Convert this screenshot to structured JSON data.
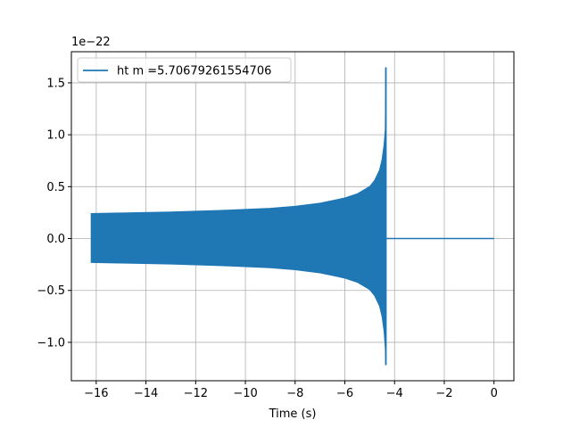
{
  "chart_data": {
    "type": "line",
    "xlabel": "Time (s)",
    "ylabel": "",
    "offset_text": "1e−22",
    "xlim": [
      -17.0,
      0.8
    ],
    "ylim": [
      -1.37,
      1.8
    ],
    "grid": true,
    "legend_position": "top-left",
    "x_ticks": [
      -16,
      -14,
      -12,
      -10,
      -8,
      -6,
      -4,
      -2,
      0
    ],
    "x_tick_labels": [
      "−16",
      "−14",
      "−12",
      "−10",
      "−8",
      "−6",
      "−4",
      "−2",
      "0"
    ],
    "y_ticks": [
      -1.0,
      -0.5,
      0.0,
      0.5,
      1.0,
      1.5
    ],
    "y_tick_labels": [
      "−1.0",
      "−0.5",
      "0.0",
      "0.5",
      "1.0",
      "1.5"
    ],
    "series": [
      {
        "name": "ht m =5.70679261554706",
        "color": "#1f77b4",
        "envelope_x": [
          -16.2,
          -15,
          -13,
          -11,
          -9,
          -8,
          -7,
          -6,
          -5.5,
          -5,
          -4.8,
          -4.6,
          -4.5,
          -4.42,
          -4.37,
          -4.35
        ],
        "envelope_upper": [
          0.24,
          0.245,
          0.255,
          0.27,
          0.29,
          0.31,
          0.34,
          0.39,
          0.43,
          0.5,
          0.56,
          0.66,
          0.76,
          0.9,
          1.05,
          1.65
        ],
        "envelope_lower": [
          -0.23,
          -0.235,
          -0.245,
          -0.26,
          -0.28,
          -0.3,
          -0.33,
          -0.38,
          -0.42,
          -0.49,
          -0.55,
          -0.65,
          -0.75,
          -0.89,
          -1.05,
          -1.22
        ],
        "zero_segment_x": [
          -4.35,
          0.0
        ]
      }
    ]
  }
}
